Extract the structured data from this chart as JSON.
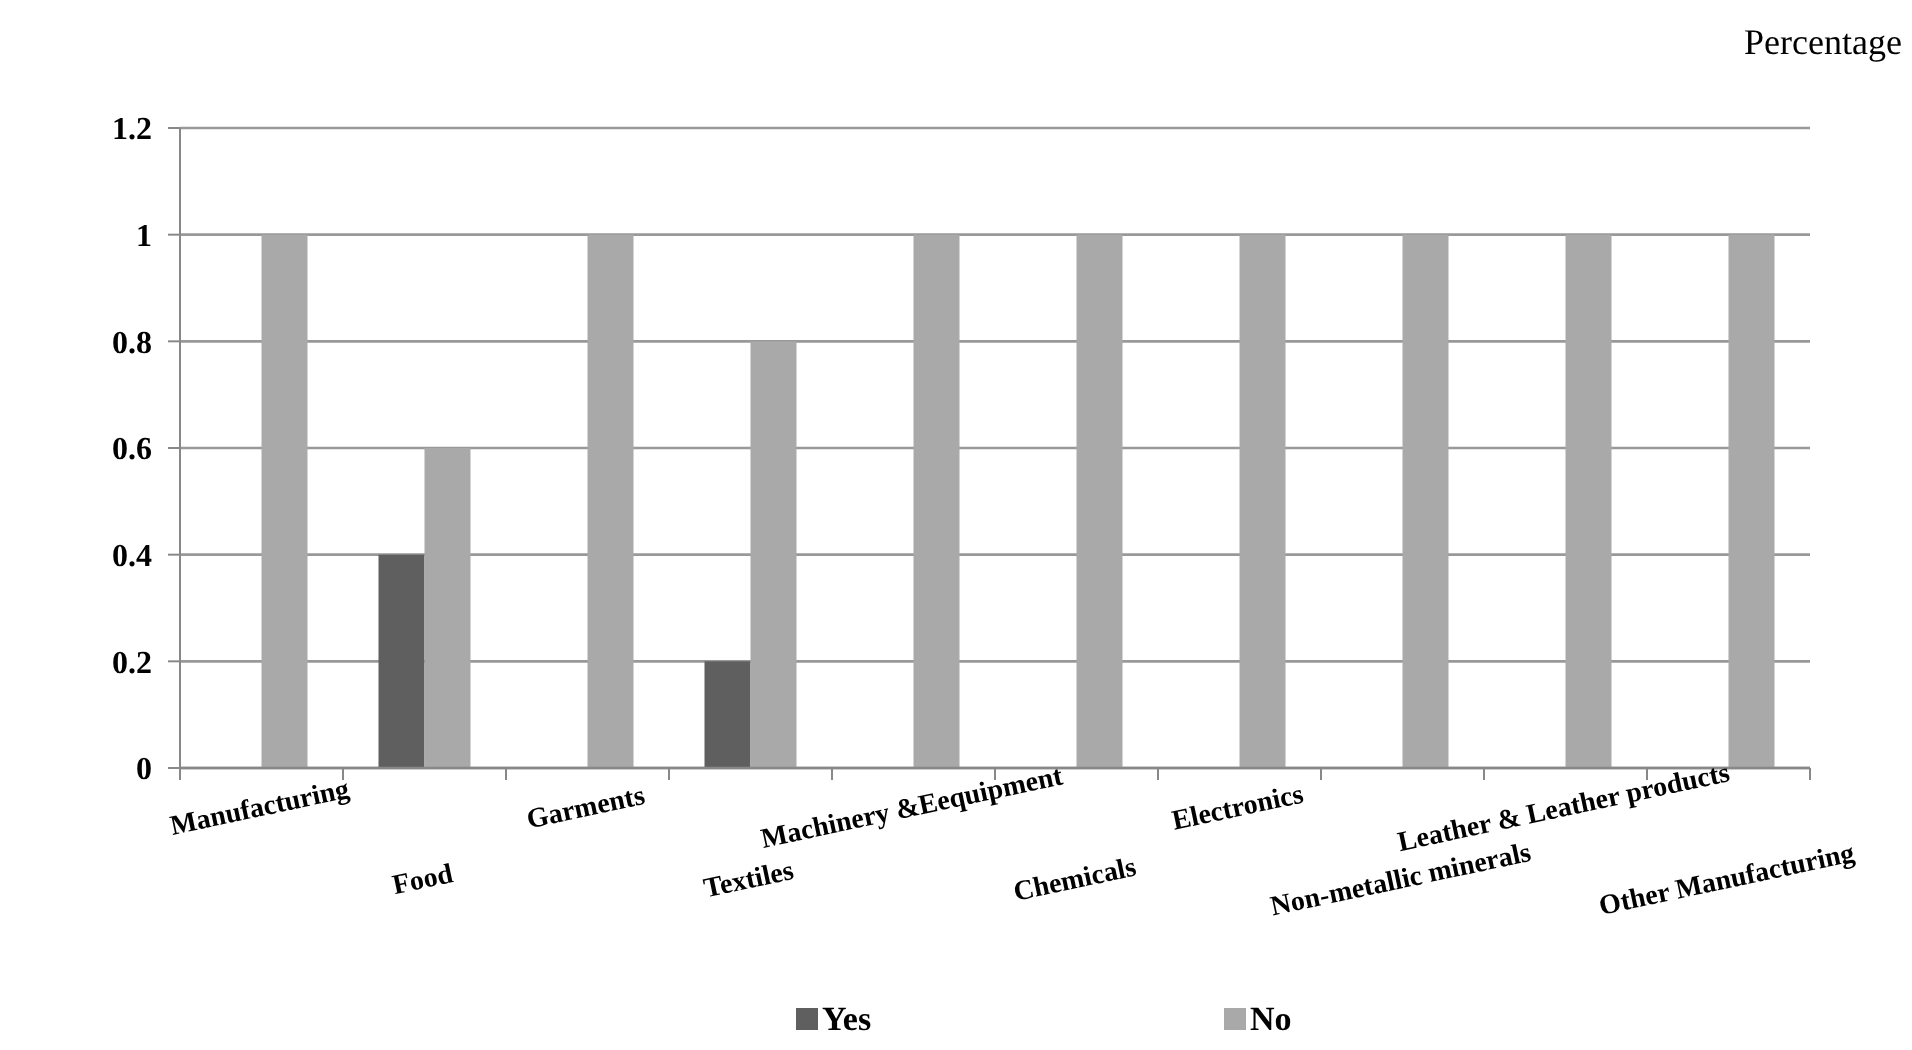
{
  "chart_data": {
    "type": "bar",
    "ylabel": "Percentage",
    "categories": [
      "Manufacturing",
      "Food",
      "Garments",
      "Textiles",
      "Machinery &Eequipment",
      "Chemicals",
      "Electronics",
      "Non-metallic minerals",
      "Leather & Leather products",
      "Other Manufacturing"
    ],
    "series": [
      {
        "name": "Yes",
        "color": "#5f5f5f",
        "values": [
          0,
          0.4,
          0,
          0.2,
          0,
          0,
          0,
          0,
          0,
          0
        ]
      },
      {
        "name": "No",
        "color": "#a9a9a9",
        "values": [
          1,
          0.6,
          1,
          0.8,
          1,
          1,
          1,
          1,
          1,
          1
        ]
      }
    ],
    "ylim": [
      0,
      1.2
    ],
    "yticks": [
      0,
      0.2,
      0.4,
      0.6,
      0.8,
      1,
      1.2
    ],
    "grid": "y",
    "legend": "bottom"
  }
}
